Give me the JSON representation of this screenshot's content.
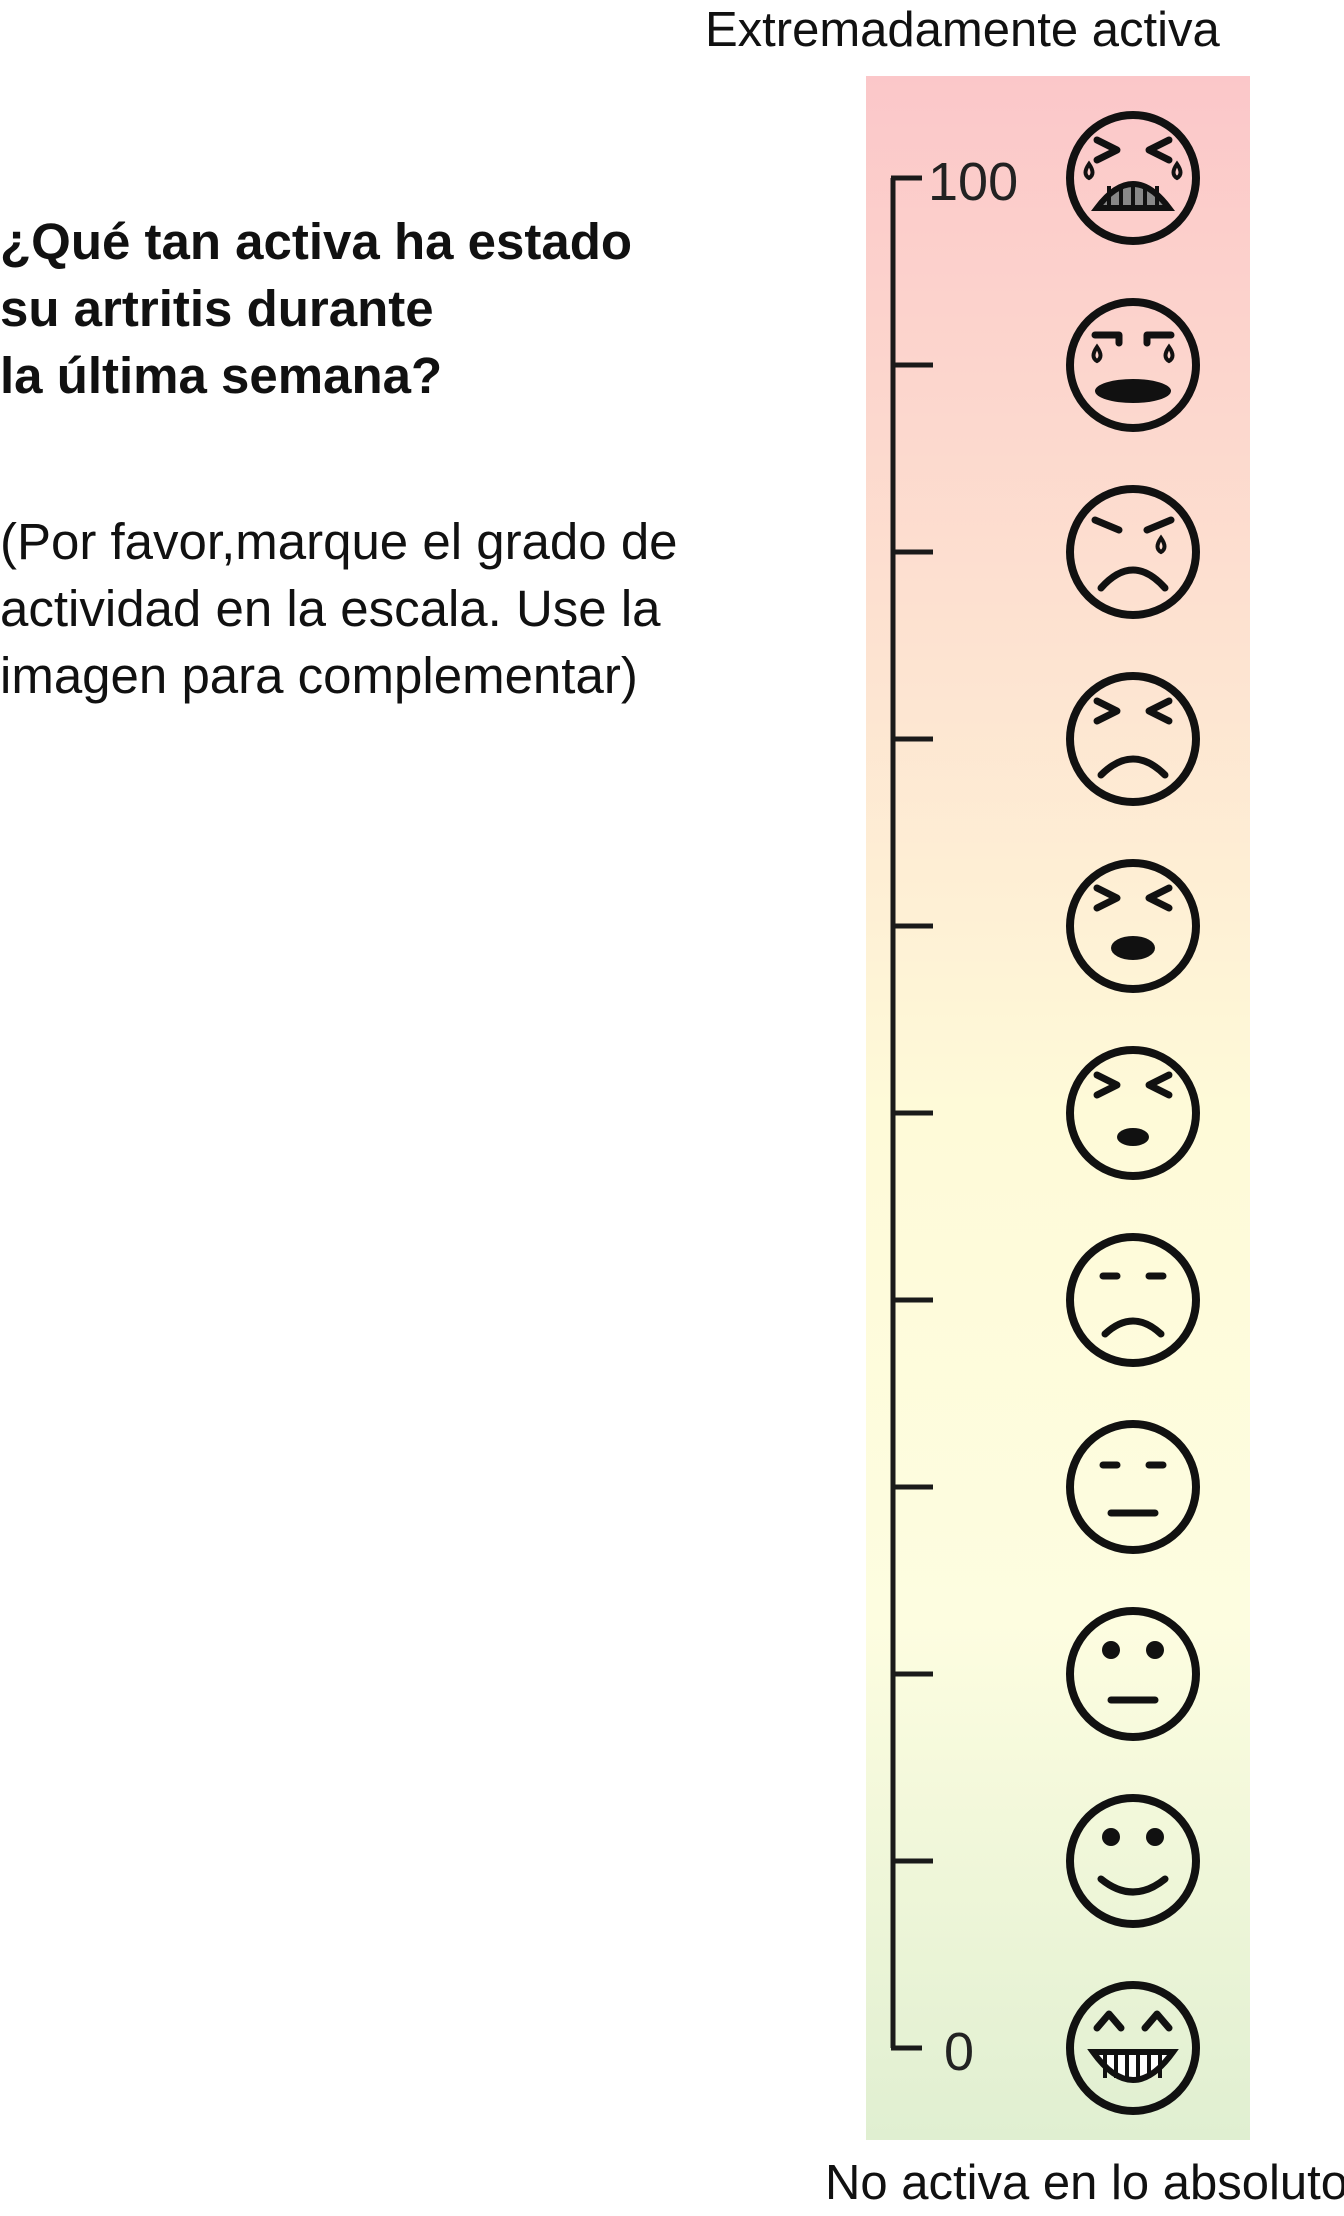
{
  "question": {
    "lines": [
      "¿Qué tan activa ha estado",
      "su artritis durante",
      "la última semana?"
    ]
  },
  "instruction": {
    "lines": [
      "(Por favor,marque el grado de",
      "actividad en la escala. Use la",
      "imagen para complementar)"
    ]
  },
  "scale": {
    "top_label": "Extremadamente activa",
    "bottom_label": "No activa en lo absoluto",
    "max_label": "100",
    "min_label": "0",
    "min": 0,
    "max": 100,
    "tick_count": 11,
    "gradient_colors": [
      "#fbc7c9",
      "#fde0d0",
      "#fefad8",
      "#fdfde0",
      "#e0efd1"
    ],
    "faces": [
      "extreme-crying-face-icon",
      "crying-open-mouth-face-icon",
      "sad-tear-face-icon",
      "angry-frown-face-icon",
      "pained-open-mouth-face-icon",
      "distressed-face-icon",
      "frowning-face-icon",
      "neutral-face-icon",
      "slightly-neutral-face-icon",
      "smiling-face-icon",
      "grinning-face-icon"
    ]
  }
}
